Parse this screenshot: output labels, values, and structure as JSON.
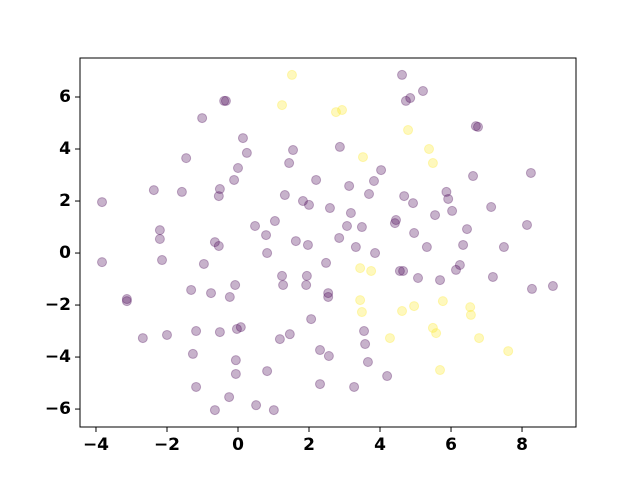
{
  "chart_data": {
    "type": "scatter",
    "xlim": [
      -4.45,
      9.52
    ],
    "ylim": [
      -6.69,
      7.5
    ],
    "xticks": [
      {
        "value": -4,
        "label": "−4"
      },
      {
        "value": -2,
        "label": "−2"
      },
      0,
      2,
      4,
      6,
      8
    ],
    "yticks": [
      {
        "value": -6,
        "label": "−6"
      },
      {
        "value": -4,
        "label": "−4"
      },
      {
        "value": -2,
        "label": "−2"
      },
      0,
      2,
      4,
      6
    ],
    "opacity": 0.3,
    "series": [
      {
        "color": "#440154",
        "x": [
          -3.83,
          -3.83,
          -3.13,
          -3.13,
          -2.68,
          -2.37,
          -2.2,
          -2.2,
          -2.14,
          -2.0,
          -1.58,
          -1.46,
          -1.32,
          -1.27,
          -1.18,
          -1.18,
          -1.01,
          -0.96,
          -0.76,
          -0.65,
          -0.65,
          -0.54,
          -0.51,
          -0.54,
          -0.51,
          -0.39,
          -0.34,
          -0.25,
          -0.23,
          -0.11,
          -0.08,
          -0.06,
          -0.06,
          -0.03,
          0.0,
          0.08,
          0.14,
          0.25,
          0.48,
          0.51,
          0.79,
          0.82,
          0.82,
          1.01,
          1.04,
          1.18,
          1.24,
          1.27,
          1.32,
          1.44,
          1.46,
          1.55,
          1.63,
          1.83,
          1.92,
          1.97,
          1.94,
          2.0,
          2.06,
          2.2,
          2.31,
          2.31,
          2.48,
          2.54,
          2.54,
          2.56,
          2.59,
          2.85,
          2.87,
          3.07,
          3.13,
          3.18,
          3.27,
          3.32,
          3.49,
          3.55,
          3.58,
          3.66,
          3.69,
          3.83,
          3.86,
          4.03,
          4.2,
          4.42,
          4.45,
          4.56,
          4.65,
          4.62,
          4.68,
          4.73,
          4.85,
          4.93,
          4.96,
          5.07,
          5.21,
          5.32,
          5.55,
          5.69,
          5.87,
          5.92,
          6.03,
          6.14,
          6.25,
          6.34,
          6.45,
          6.62,
          6.7,
          6.76,
          7.13,
          7.18,
          7.49,
          8.14,
          8.25,
          8.28,
          8.87
        ],
        "y": [
          1.96,
          -0.35,
          -1.77,
          -1.85,
          -3.27,
          2.42,
          0.88,
          0.54,
          -0.27,
          -3.15,
          2.35,
          3.65,
          -1.42,
          -3.88,
          -3.0,
          -5.15,
          5.19,
          -0.42,
          -1.54,
          0.42,
          -6.04,
          2.19,
          2.46,
          0.27,
          -3.04,
          5.85,
          5.85,
          -5.54,
          -1.69,
          2.81,
          -1.23,
          -4.65,
          -4.12,
          -2.92,
          3.27,
          -2.85,
          4.42,
          3.85,
          1.04,
          -5.85,
          0.69,
          0.0,
          -4.54,
          -6.04,
          1.23,
          -3.31,
          -0.88,
          -1.23,
          2.23,
          3.46,
          -3.12,
          3.96,
          0.46,
          2.0,
          -1.23,
          0.31,
          -0.88,
          1.85,
          -2.54,
          2.81,
          -3.73,
          -5.04,
          -0.38,
          -1.69,
          -1.54,
          -3.96,
          1.73,
          0.58,
          4.08,
          1.04,
          2.58,
          1.54,
          -5.15,
          0.23,
          1.0,
          -3.0,
          -3.5,
          -4.19,
          2.27,
          2.77,
          0.0,
          3.19,
          -4.73,
          1.15,
          1.27,
          -0.69,
          -0.69,
          6.85,
          2.19,
          5.85,
          5.96,
          1.92,
          0.77,
          -0.96,
          6.23,
          0.23,
          1.46,
          -1.04,
          2.35,
          2.08,
          1.62,
          -0.65,
          -0.46,
          0.31,
          0.92,
          2.96,
          4.88,
          4.85,
          1.77,
          -0.92,
          0.23,
          1.08,
          3.08,
          -1.38,
          -1.27
        ]
      },
      {
        "color": "#fde725",
        "x": [
          1.52,
          1.24,
          2.76,
          2.93,
          3.52,
          3.44,
          3.75,
          3.44,
          3.49,
          4.28,
          4.62,
          4.79,
          4.96,
          5.38,
          5.49,
          5.49,
          5.58,
          5.69,
          5.77,
          6.54,
          6.56,
          6.79,
          7.61
        ],
        "y": [
          6.85,
          5.69,
          5.42,
          5.5,
          3.69,
          -0.58,
          -0.69,
          -1.81,
          -2.27,
          -3.27,
          -2.23,
          4.73,
          -2.04,
          4.0,
          3.46,
          -2.88,
          -3.08,
          -4.5,
          -1.85,
          -2.08,
          -2.38,
          -3.27,
          -3.77
        ]
      }
    ]
  }
}
